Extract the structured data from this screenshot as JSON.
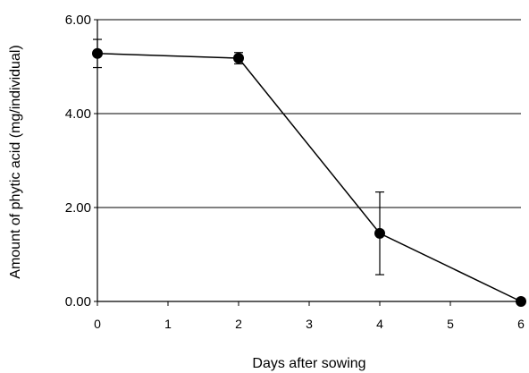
{
  "chart_data": {
    "type": "line",
    "title": "",
    "xlabel": "Days after sowing",
    "ylabel": "Amount of phytic acid (mg/individual)",
    "x_ticks": [
      "0",
      "1",
      "2",
      "3",
      "4",
      "5",
      "6"
    ],
    "y_ticks": [
      "0.00",
      "2.00",
      "4.00",
      "6.00"
    ],
    "xlim": [
      0,
      6
    ],
    "ylim": [
      0,
      6
    ],
    "grid": "horizontal",
    "legend": "none",
    "series": [
      {
        "x": [
          0,
          2,
          4,
          6
        ],
        "y": [
          5.28,
          5.18,
          1.45,
          0.0
        ],
        "error": [
          0.3,
          0.12,
          0.88,
          0.0
        ]
      }
    ],
    "colors": {
      "line": "#000000",
      "marker": "#000000",
      "grid": "#000000",
      "background": "#ffffff"
    }
  }
}
